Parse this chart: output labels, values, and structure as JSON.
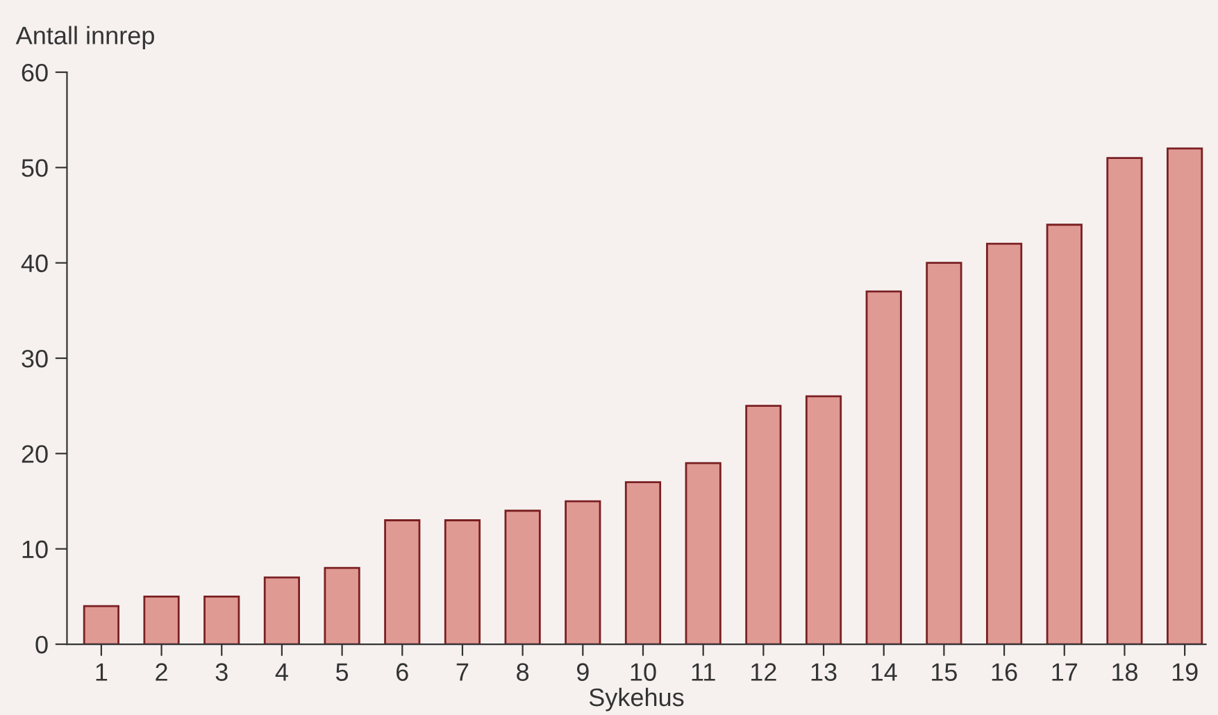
{
  "chart_data": {
    "type": "bar",
    "xlabel": "Sykehus",
    "ylabel": "Antall innrep",
    "categories": [
      "1",
      "2",
      "3",
      "4",
      "5",
      "6",
      "7",
      "8",
      "9",
      "10",
      "11",
      "12",
      "13",
      "14",
      "15",
      "16",
      "17",
      "18",
      "19"
    ],
    "values": [
      4,
      5,
      5,
      7,
      8,
      13,
      13,
      14,
      15,
      17,
      19,
      25,
      26,
      37,
      40,
      42,
      44,
      51,
      52
    ],
    "color": "#e09a94",
    "ylim": [
      0,
      60
    ],
    "yticks": [
      0,
      10,
      20,
      30,
      40,
      50,
      60
    ],
    "grid": false,
    "legend": false
  }
}
